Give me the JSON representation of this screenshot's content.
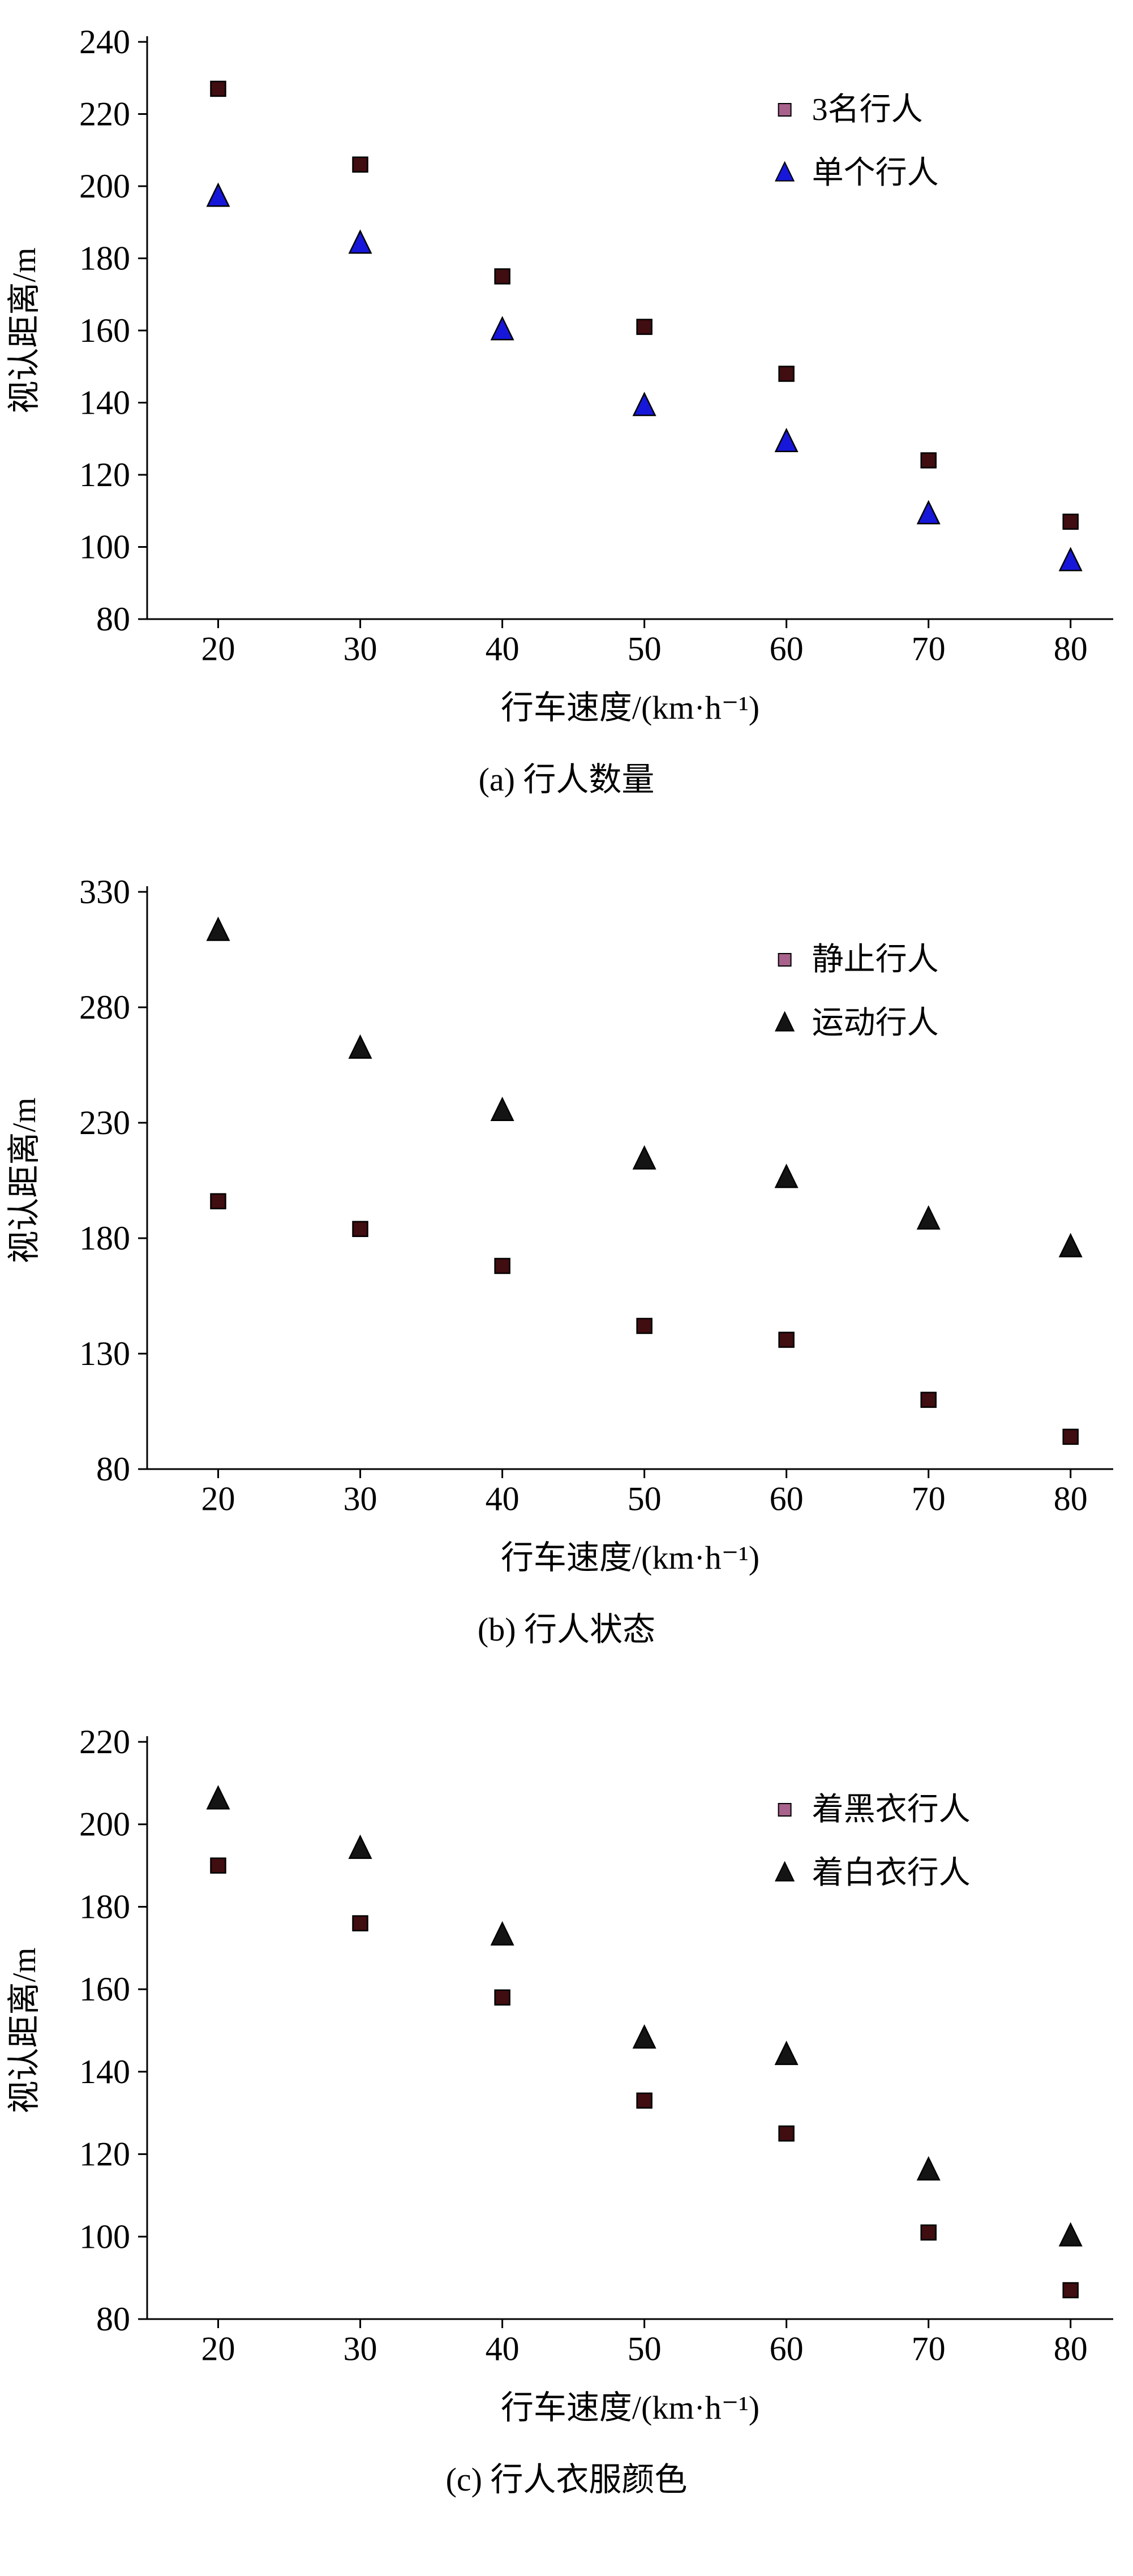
{
  "page": {
    "background": "#ffffff",
    "text_color": "#000000"
  },
  "chart_data": [
    {
      "type": "scatter",
      "caption": "(a) 行人数量",
      "xlabel": "行车速度/(km·h⁻¹)",
      "ylabel": "视认距离/m",
      "xlim": [
        15,
        83
      ],
      "ylim": [
        80,
        240
      ],
      "xticks": [
        20,
        30,
        40,
        50,
        60,
        70,
        80
      ],
      "yticks": [
        80,
        100,
        120,
        140,
        160,
        180,
        200,
        220,
        240
      ],
      "grid": false,
      "legend_position": "top-right-inside",
      "series": [
        {
          "name": "3名行人",
          "marker": "square",
          "fill": "#400d10",
          "legend_fill": "#a8628b",
          "stroke": "#000000",
          "x": [
            20,
            30,
            40,
            50,
            60,
            70,
            80
          ],
          "y": [
            227,
            206,
            175,
            161,
            148,
            124,
            107
          ]
        },
        {
          "name": "单个行人",
          "marker": "triangle",
          "fill": "#1717d9",
          "legend_fill": "#1717d9",
          "stroke": "#000000",
          "x": [
            20,
            30,
            40,
            50,
            60,
            70,
            80
          ],
          "y": [
            197,
            184,
            160,
            139,
            129,
            109,
            96
          ]
        }
      ]
    },
    {
      "type": "scatter",
      "caption": "(b) 行人状态",
      "xlabel": "行车速度/(km·h⁻¹)",
      "ylabel": "视认距离/m",
      "xlim": [
        15,
        83
      ],
      "ylim": [
        80,
        330
      ],
      "xticks": [
        20,
        30,
        40,
        50,
        60,
        70,
        80
      ],
      "yticks": [
        80,
        130,
        180,
        230,
        280,
        330
      ],
      "grid": false,
      "legend_position": "top-right-inside",
      "series": [
        {
          "name": "静止行人",
          "marker": "square",
          "fill": "#400d10",
          "legend_fill": "#a8628b",
          "stroke": "#000000",
          "x": [
            20,
            30,
            40,
            50,
            60,
            70,
            80
          ],
          "y": [
            196,
            184,
            168,
            142,
            136,
            110,
            94
          ]
        },
        {
          "name": "运动行人",
          "marker": "triangle",
          "fill": "#141414",
          "legend_fill": "#141414",
          "stroke": "#000000",
          "x": [
            20,
            30,
            40,
            50,
            60,
            70,
            80
          ],
          "y": [
            313,
            262,
            235,
            214,
            206,
            188,
            176
          ]
        }
      ]
    },
    {
      "type": "scatter",
      "caption": "(c) 行人衣服颜色",
      "xlabel": "行车速度/(km·h⁻¹)",
      "ylabel": "视认距离/m",
      "xlim": [
        15,
        83
      ],
      "ylim": [
        80,
        220
      ],
      "xticks": [
        20,
        30,
        40,
        50,
        60,
        70,
        80
      ],
      "yticks": [
        80,
        100,
        120,
        140,
        160,
        180,
        200,
        220
      ],
      "grid": false,
      "legend_position": "top-right-inside",
      "series": [
        {
          "name": "着黑衣行人",
          "marker": "square",
          "fill": "#400d10",
          "legend_fill": "#a8628b",
          "stroke": "#000000",
          "x": [
            20,
            30,
            40,
            50,
            60,
            70,
            80
          ],
          "y": [
            190,
            176,
            158,
            133,
            125,
            101,
            87
          ]
        },
        {
          "name": "着白衣行人",
          "marker": "triangle",
          "fill": "#141414",
          "legend_fill": "#141414",
          "stroke": "#000000",
          "x": [
            20,
            30,
            40,
            50,
            60,
            70,
            80
          ],
          "y": [
            206,
            194,
            173,
            148,
            144,
            116,
            100
          ]
        }
      ]
    }
  ]
}
